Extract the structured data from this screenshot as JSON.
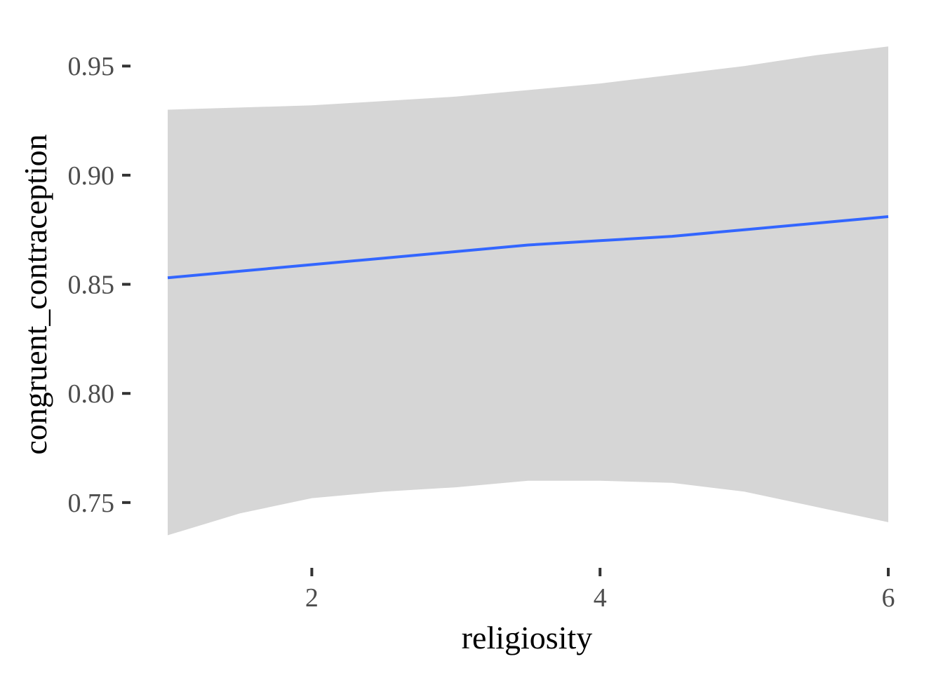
{
  "chart_data": {
    "type": "line",
    "xlabel": "religiosity",
    "ylabel": "congruent_contraception",
    "xlim": [
      1,
      6
    ],
    "ylim": [
      0.731,
      0.961
    ],
    "x_ticks": [
      2,
      4,
      6
    ],
    "x_tick_labels": [
      "2",
      "4",
      "6"
    ],
    "y_ticks": [
      0.75,
      0.8,
      0.85,
      0.9,
      0.95
    ],
    "y_tick_labels": [
      "0.75",
      "0.80",
      "0.85",
      "0.90",
      "0.95"
    ],
    "grid": false,
    "legend": "none",
    "colors": {
      "line": "#3366ff",
      "ribbon": "#d6d6d6"
    },
    "series": [
      {
        "x": [
          1.0,
          1.5,
          2.0,
          2.5,
          3.0,
          3.5,
          4.0,
          4.5,
          5.0,
          5.5,
          6.0
        ],
        "y": [
          0.853,
          0.856,
          0.859,
          0.862,
          0.865,
          0.868,
          0.87,
          0.872,
          0.875,
          0.878,
          0.881
        ],
        "lower": [
          0.735,
          0.745,
          0.752,
          0.755,
          0.757,
          0.76,
          0.76,
          0.759,
          0.755,
          0.748,
          0.741
        ],
        "upper": [
          0.93,
          0.931,
          0.932,
          0.934,
          0.936,
          0.939,
          0.942,
          0.946,
          0.95,
          0.955,
          0.959
        ]
      }
    ]
  }
}
